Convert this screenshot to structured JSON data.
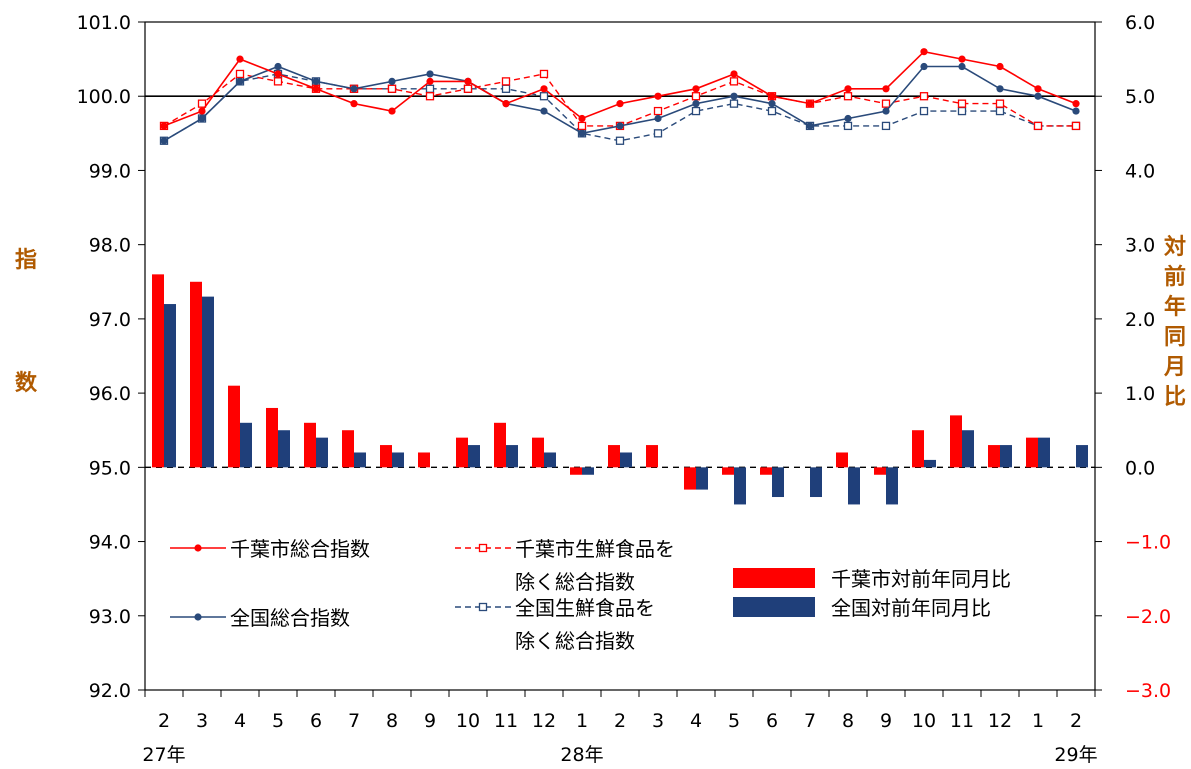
{
  "chart_data": {
    "type": "bar+line",
    "left_axis": {
      "title": "指数",
      "ylim": [
        92.0,
        101.0
      ],
      "ticks": [
        "101.0",
        "100.0",
        "99.0",
        "98.0",
        "97.0",
        "96.0",
        "95.0",
        "94.0",
        "93.0",
        "92.0"
      ]
    },
    "right_axis": {
      "title": "対前年同月比",
      "ylim": [
        -3.0,
        6.0
      ],
      "ticks": [
        "6.0",
        "5.0",
        "4.0",
        "3.0",
        "2.0",
        "1.0",
        "0.0",
        "−1.0",
        "−2.0",
        "−3.0"
      ]
    },
    "months": [
      "2",
      "3",
      "4",
      "5",
      "6",
      "7",
      "8",
      "9",
      "10",
      "11",
      "12",
      "1",
      "2",
      "3",
      "4",
      "5",
      "6",
      "7",
      "8",
      "9",
      "10",
      "11",
      "12",
      "1",
      "2"
    ],
    "years": [
      {
        "label": "27年",
        "index": 0
      },
      {
        "label": "28年",
        "index": 11
      },
      {
        "label": "29年",
        "index": 24
      }
    ],
    "colors": {
      "chiba": "#ff0000",
      "national": "#2a4a7a"
    },
    "bar_series": [
      {
        "name": "千葉市対前年同月比",
        "color": "#ff0000",
        "values": [
          2.6,
          2.5,
          1.1,
          0.8,
          0.6,
          0.5,
          0.3,
          0.2,
          0.4,
          0.6,
          0.4,
          -0.1,
          0.3,
          0.3,
          -0.3,
          -0.1,
          -0.1,
          0.0,
          0.2,
          -0.1,
          0.5,
          0.7,
          0.3,
          0.4,
          0.0
        ]
      },
      {
        "name": "全国対前年同月比",
        "color": "#1f3f7a",
        "values": [
          2.2,
          2.3,
          0.6,
          0.5,
          0.4,
          0.2,
          0.2,
          0.0,
          0.3,
          0.3,
          0.2,
          -0.1,
          0.2,
          0.0,
          -0.3,
          -0.5,
          -0.4,
          -0.4,
          -0.5,
          -0.5,
          0.1,
          0.5,
          0.3,
          0.4,
          0.3
        ]
      }
    ],
    "line_series": [
      {
        "name": "千葉市総合指数",
        "legend_label": [
          "千葉市総合指数"
        ],
        "color": "#ff0000",
        "dash": false,
        "marker": "filled",
        "values": [
          99.6,
          99.8,
          100.5,
          100.3,
          100.1,
          99.9,
          99.8,
          100.2,
          100.2,
          99.9,
          100.1,
          99.7,
          99.9,
          100.0,
          100.1,
          100.3,
          100.0,
          99.9,
          100.1,
          100.1,
          100.6,
          100.5,
          100.4,
          100.1,
          99.9
        ]
      },
      {
        "name": "全国総合指数",
        "legend_label": [
          "全国総合指数"
        ],
        "color": "#2a4a7a",
        "dash": false,
        "marker": "filled",
        "values": [
          99.4,
          99.7,
          100.2,
          100.4,
          100.2,
          100.1,
          100.2,
          100.3,
          100.2,
          99.9,
          99.8,
          99.5,
          99.6,
          99.7,
          99.9,
          100.0,
          99.9,
          99.6,
          99.7,
          99.8,
          100.4,
          100.4,
          100.1,
          100.0,
          99.8
        ]
      },
      {
        "name": "千葉市生鮮食品を除く総合指数",
        "legend_label": [
          "千葉市生鮮食品を",
          "除く総合指数"
        ],
        "color": "#ff0000",
        "dash": true,
        "marker": "open",
        "values": [
          99.6,
          99.9,
          100.3,
          100.2,
          100.1,
          100.1,
          100.1,
          100.0,
          100.1,
          100.2,
          100.3,
          99.6,
          99.6,
          99.8,
          100.0,
          100.2,
          100.0,
          99.9,
          100.0,
          99.9,
          100.0,
          99.9,
          99.9,
          99.6,
          99.6
        ]
      },
      {
        "name": "全国生鮮食品を除く総合指数",
        "legend_label": [
          "全国生鮮食品を",
          "除く総合指数"
        ],
        "color": "#2a4a7a",
        "dash": true,
        "marker": "open",
        "values": [
          99.4,
          99.7,
          100.2,
          100.3,
          100.2,
          100.1,
          100.1,
          100.1,
          100.1,
          100.1,
          100.0,
          99.5,
          99.4,
          99.5,
          99.8,
          99.9,
          99.8,
          99.6,
          99.6,
          99.6,
          99.8,
          99.8,
          99.8,
          99.6,
          99.6
        ]
      }
    ],
    "reference_lines": [
      {
        "axis": "left",
        "value": 100.0,
        "style": "solid"
      },
      {
        "axis": "left",
        "value": 95.0,
        "style": "dashed"
      }
    ],
    "grid": false,
    "legend_position": "bottom-left inside plot"
  }
}
